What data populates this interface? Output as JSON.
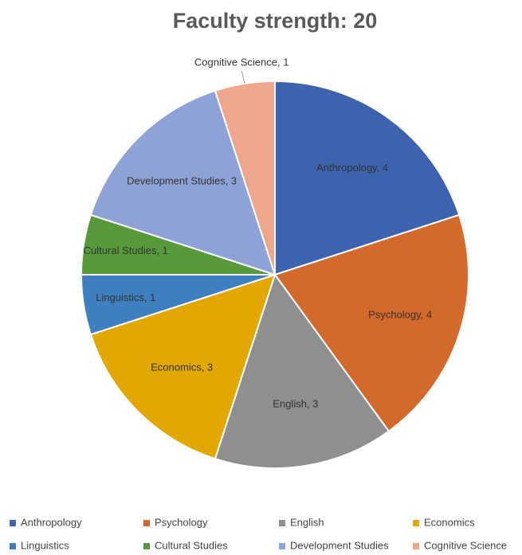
{
  "chart_data": {
    "type": "pie",
    "title": "Faculty strength: 20",
    "categories": [
      "Anthropology",
      "Psychology",
      "English",
      "Economics",
      "Linguistics",
      "Cultural Studies",
      "Development Studies",
      "Cognitive Science"
    ],
    "values": [
      4,
      4,
      3,
      3,
      1,
      1,
      3,
      1
    ],
    "value_labels": [
      "Anthropology, 4",
      "Psychology, 4",
      "English, 3",
      "Economics, 3",
      "Linguistics, 1",
      "Cultural Studies, 1",
      "Development Studies, 3",
      "Cognitive Science, 1"
    ],
    "colors": [
      "#3d62ae",
      "#d3692a",
      "#8f8f8f",
      "#e2a800",
      "#3e7fbf",
      "#579a3b",
      "#8fa2d6",
      "#efa68b"
    ],
    "legend": "bottom"
  }
}
